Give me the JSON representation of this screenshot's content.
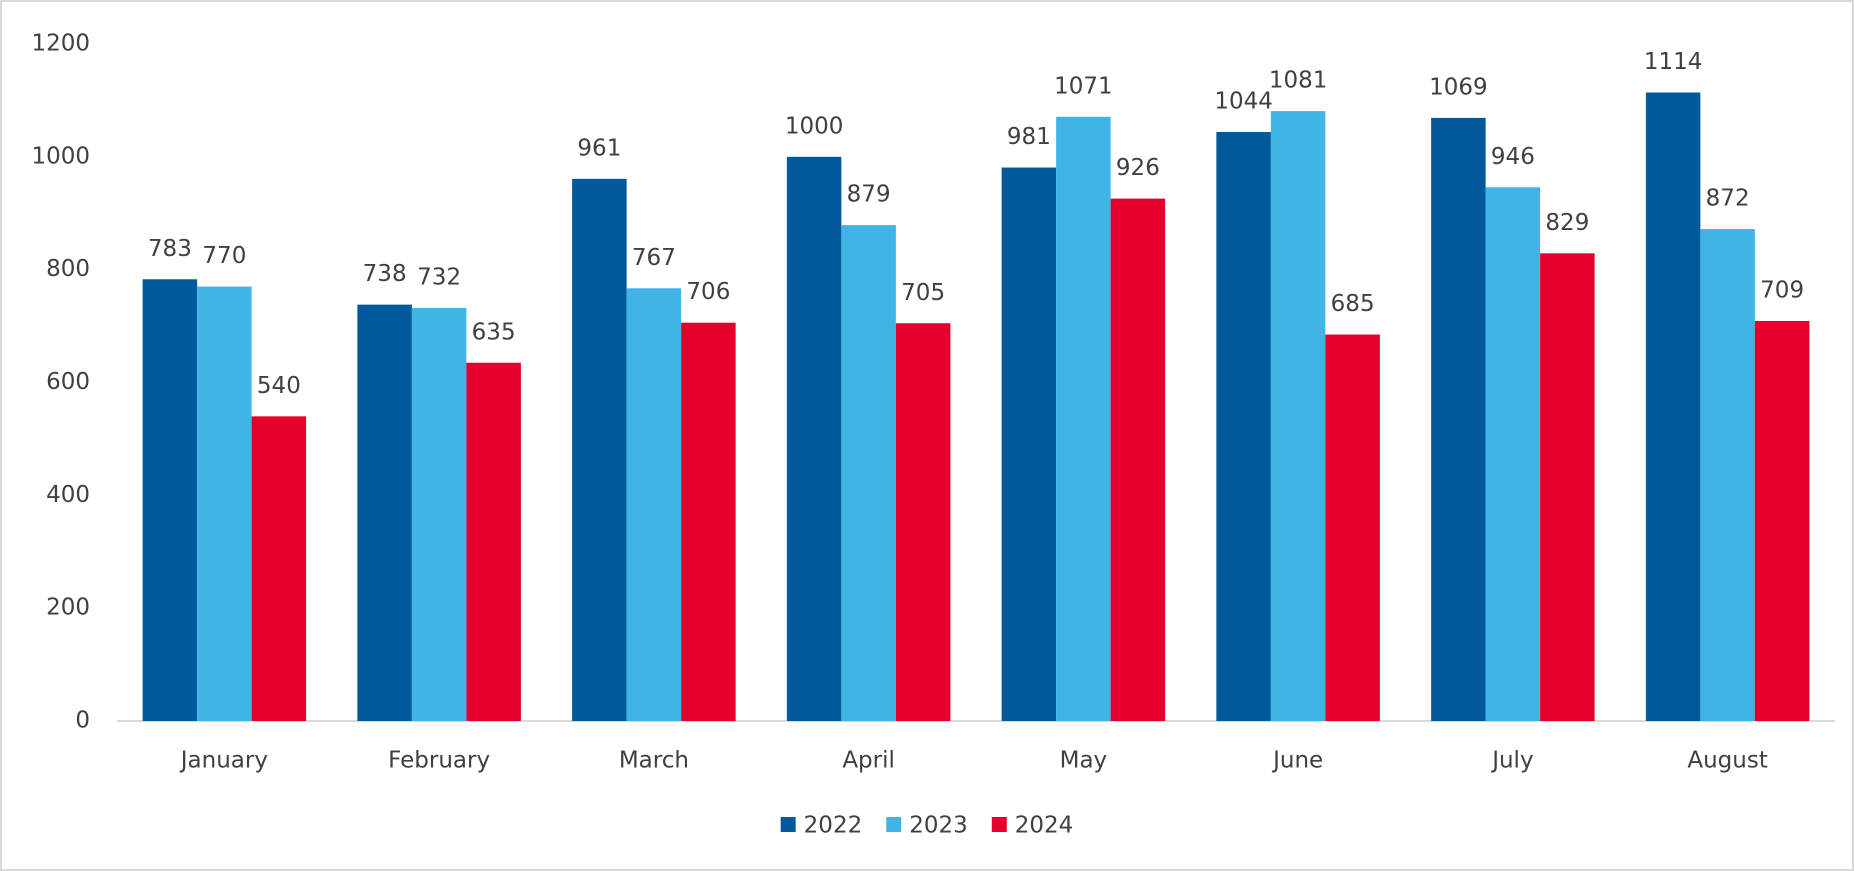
{
  "chart_data": {
    "type": "bar",
    "categories": [
      "January",
      "February",
      "March",
      "April",
      "May",
      "June",
      "July",
      "August"
    ],
    "series": [
      {
        "name": "2022",
        "color": "#00599a",
        "values": [
          783,
          738,
          961,
          1000,
          981,
          1044,
          1069,
          1114
        ]
      },
      {
        "name": "2023",
        "color": "#41b4e6",
        "values": [
          770,
          732,
          767,
          879,
          1071,
          1081,
          946,
          872
        ]
      },
      {
        "name": "2024",
        "color": "#e4002b",
        "values": [
          540,
          635,
          706,
          705,
          926,
          685,
          829,
          709
        ]
      }
    ],
    "ylim": [
      0,
      1200
    ],
    "yticks": [
      0,
      200,
      400,
      600,
      800,
      1000,
      1200
    ],
    "grid": false,
    "legend": "bottom"
  }
}
